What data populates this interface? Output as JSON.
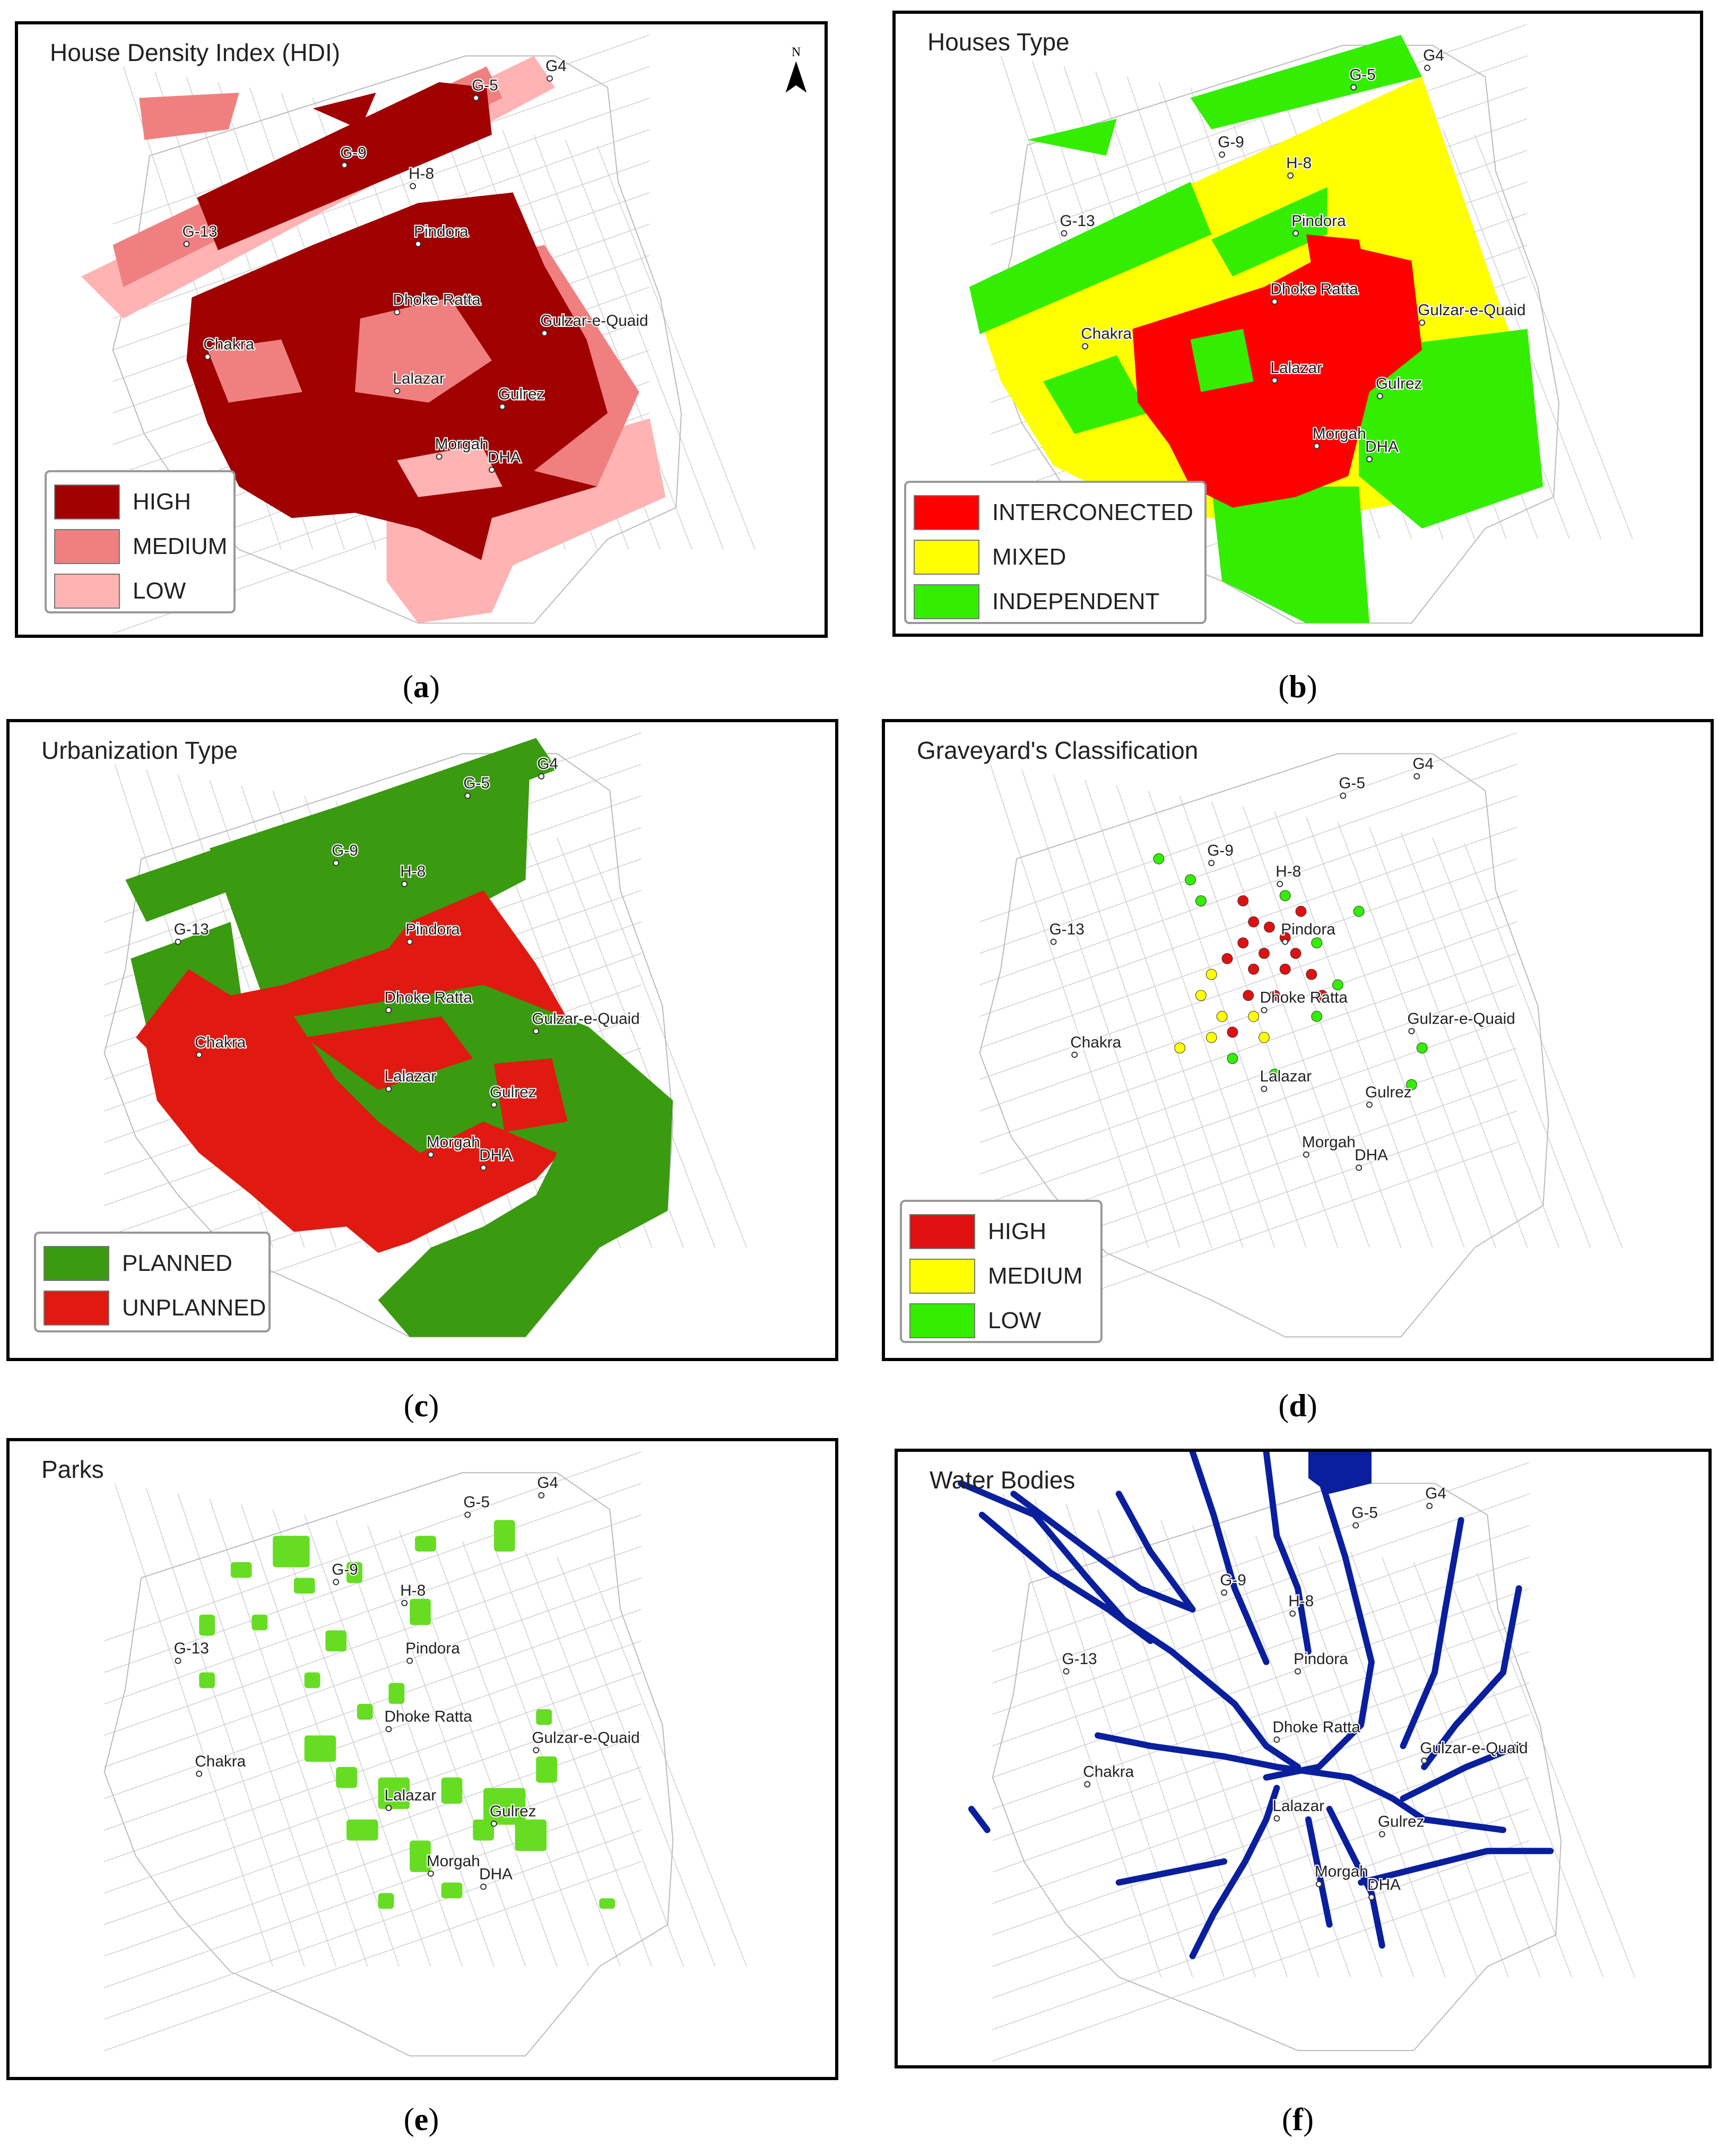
{
  "panels": [
    {
      "id": "a",
      "title": "House Density Index (HDI)",
      "caption": "a",
      "legend": [
        {
          "label": "HIGH",
          "color": "#a00000"
        },
        {
          "label": "MEDIUM",
          "color": "#f08080"
        },
        {
          "label": "LOW",
          "color": "#ffb3b3"
        }
      ]
    },
    {
      "id": "b",
      "title": "Houses Type",
      "caption": "b",
      "legend": [
        {
          "label": "INTERCONECTED",
          "color": "#ff0000"
        },
        {
          "label": "MIXED",
          "color": "#ffff00"
        },
        {
          "label": "INDEPENDENT",
          "color": "#33ee00"
        }
      ]
    },
    {
      "id": "c",
      "title": "Urbanization Type",
      "caption": "c",
      "legend": [
        {
          "label": "PLANNED",
          "color": "#3a9a10"
        },
        {
          "label": "UNPLANNED",
          "color": "#e01a10"
        }
      ]
    },
    {
      "id": "d",
      "title": "Graveyard's Classification",
      "caption": "d",
      "legend": [
        {
          "label": "HIGH",
          "color": "#e01010"
        },
        {
          "label": "MEDIUM",
          "color": "#ffff00"
        },
        {
          "label": "LOW",
          "color": "#33ee00"
        }
      ]
    },
    {
      "id": "e",
      "title": "Parks",
      "caption": "e",
      "legend": []
    },
    {
      "id": "f",
      "title": "Water Bodies",
      "caption": "f",
      "legend": []
    }
  ],
  "places": [
    "G4",
    "G-5",
    "G-9",
    "H-8",
    "G-13",
    "Pindora",
    "Dhoke Ratta",
    "Gulzar-e-Quaid",
    "Chakra",
    "Lalazar",
    "Gulrez",
    "Morgah",
    "DHA"
  ],
  "north_arrow": {
    "label": "N",
    "icon": "north-arrow-icon"
  },
  "colors": {
    "park": "#66dd22",
    "water": "#0a1f9e",
    "outline": "#bbbbbb"
  }
}
